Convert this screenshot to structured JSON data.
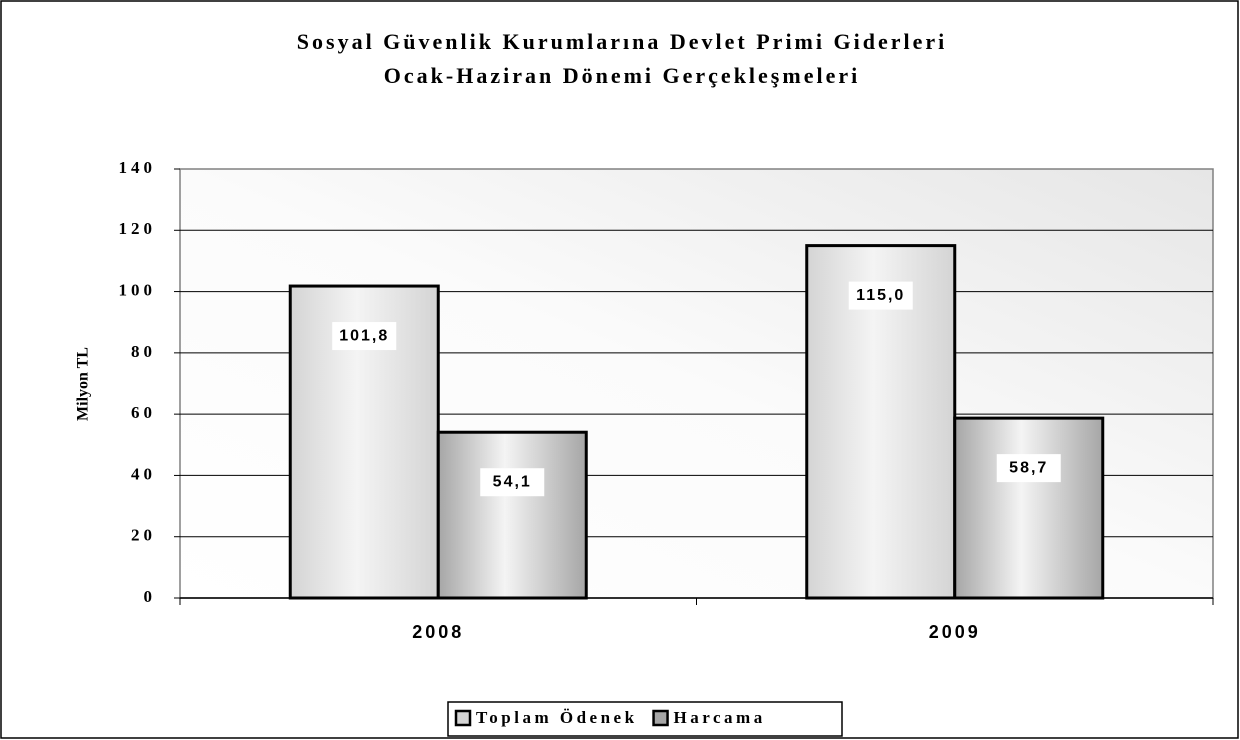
{
  "chart_data": {
    "type": "bar",
    "title": "Sosyal Güvenlik Kurumlarına Devlet Primi Giderleri",
    "subtitle": "Ocak-Haziran Dönemi Gerçekleşmeleri",
    "y_label": "Milyon TL",
    "categories": [
      "2008",
      "2009"
    ],
    "series": [
      {
        "name": "Toplam Ödenek",
        "color": "#d4d4d4",
        "values": [
          101.8,
          115.0
        ],
        "value_labels": [
          "101,8",
          "115,0"
        ]
      },
      {
        "name": "Harcama",
        "color": "#a6a6a6",
        "values": [
          54.1,
          58.7
        ],
        "value_labels": [
          "54,1",
          "58,7"
        ]
      }
    ],
    "ylim": [
      0,
      140
    ],
    "yticks": [
      0,
      20,
      40,
      60,
      80,
      100,
      120,
      140
    ],
    "grid": true,
    "legend": "bottom"
  }
}
